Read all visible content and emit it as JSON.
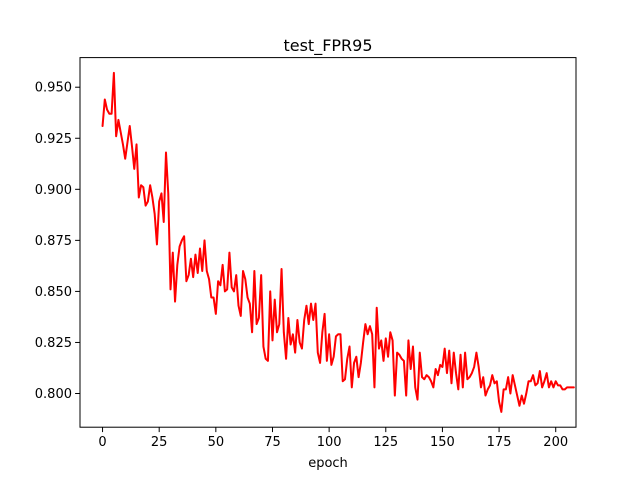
{
  "chart_data": {
    "type": "line",
    "title": "test_FPR95",
    "xlabel": "epoch",
    "ylabel": "",
    "xlim": [
      -9.95,
      208.95
    ],
    "ylim": [
      0.7835,
      0.9645
    ],
    "x_ticks": [
      0,
      25,
      50,
      75,
      100,
      125,
      150,
      175,
      200
    ],
    "y_ticks": [
      0.8,
      0.825,
      0.85,
      0.875,
      0.9,
      0.925,
      0.95
    ],
    "grid": false,
    "legend": "none",
    "series": [
      {
        "color": "#ff0000",
        "values": [
          0.931,
          0.944,
          0.939,
          0.937,
          0.937,
          0.957,
          0.926,
          0.934,
          0.928,
          0.922,
          0.915,
          0.923,
          0.931,
          0.921,
          0.91,
          0.922,
          0.896,
          0.902,
          0.901,
          0.892,
          0.894,
          0.902,
          0.896,
          0.888,
          0.873,
          0.894,
          0.898,
          0.884,
          0.918,
          0.898,
          0.851,
          0.869,
          0.845,
          0.863,
          0.872,
          0.875,
          0.877,
          0.855,
          0.858,
          0.866,
          0.857,
          0.868,
          0.859,
          0.871,
          0.86,
          0.875,
          0.86,
          0.856,
          0.847,
          0.847,
          0.839,
          0.855,
          0.853,
          0.863,
          0.85,
          0.851,
          0.869,
          0.852,
          0.85,
          0.858,
          0.843,
          0.838,
          0.86,
          0.856,
          0.847,
          0.844,
          0.83,
          0.86,
          0.834,
          0.837,
          0.858,
          0.823,
          0.817,
          0.816,
          0.85,
          0.826,
          0.846,
          0.83,
          0.834,
          0.861,
          0.83,
          0.817,
          0.837,
          0.824,
          0.829,
          0.82,
          0.836,
          0.825,
          0.822,
          0.836,
          0.843,
          0.834,
          0.844,
          0.836,
          0.844,
          0.82,
          0.815,
          0.83,
          0.839,
          0.816,
          0.829,
          0.814,
          0.818,
          0.828,
          0.829,
          0.829,
          0.806,
          0.807,
          0.817,
          0.823,
          0.803,
          0.815,
          0.818,
          0.808,
          0.815,
          0.825,
          0.834,
          0.829,
          0.833,
          0.829,
          0.803,
          0.842,
          0.822,
          0.826,
          0.816,
          0.827,
          0.818,
          0.83,
          0.826,
          0.799,
          0.82,
          0.819,
          0.817,
          0.816,
          0.799,
          0.826,
          0.812,
          0.823,
          0.803,
          0.797,
          0.82,
          0.808,
          0.807,
          0.809,
          0.808,
          0.806,
          0.803,
          0.812,
          0.809,
          0.814,
          0.813,
          0.822,
          0.81,
          0.821,
          0.805,
          0.82,
          0.81,
          0.802,
          0.819,
          0.803,
          0.82,
          0.807,
          0.808,
          0.81,
          0.813,
          0.82,
          0.813,
          0.803,
          0.808,
          0.799,
          0.802,
          0.804,
          0.809,
          0.805,
          0.806,
          0.796,
          0.791,
          0.802,
          0.802,
          0.808,
          0.8,
          0.809,
          0.804,
          0.799,
          0.794,
          0.799,
          0.795,
          0.8,
          0.806,
          0.806,
          0.809,
          0.804,
          0.805,
          0.811,
          0.803,
          0.806,
          0.81,
          0.803,
          0.806,
          0.803,
          0.806,
          0.804,
          0.804,
          0.802,
          0.802,
          0.803,
          0.803,
          0.803,
          0.803
        ]
      }
    ]
  }
}
